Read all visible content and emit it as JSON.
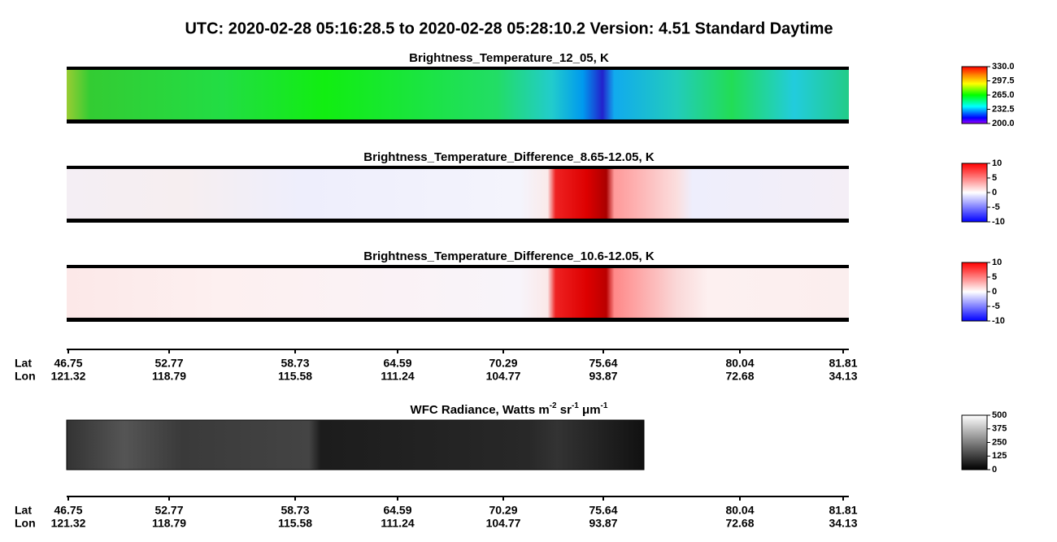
{
  "title": "UTC:  2020-02-28   05:16:28.5  to  2020-02-28   05:28:10.2    Version: 4.51  Standard Daytime",
  "panels": [
    {
      "title": "Brightness_Temperature_12_05, K",
      "colorbar": {
        "ylim": [
          200,
          330
        ],
        "yticks": [
          {
            "value": 200,
            "label": "200.0"
          },
          {
            "value": 232.5,
            "label": "232.5"
          },
          {
            "value": 265,
            "label": "265.0"
          },
          {
            "value": 297.5,
            "label": "297.5"
          },
          {
            "value": 330,
            "label": "330.0"
          }
        ]
      }
    },
    {
      "title": "Brightness_Temperature_Difference_8.65-12.05, K",
      "colorbar": {
        "ylim": [
          -10,
          10
        ],
        "yticks": [
          -10,
          -5,
          0,
          5,
          10
        ]
      }
    },
    {
      "title": "Brightness_Temperature_Difference_10.6-12.05, K",
      "colorbar": {
        "ylim": [
          -10,
          10
        ],
        "yticks": [
          -10,
          -5,
          0,
          5,
          10
        ]
      }
    },
    {
      "title_parts": [
        "WFC Radiance, Watts m",
        "-2",
        " sr",
        "-1",
        " μm",
        "-1"
      ],
      "colorbar": {
        "ylim": [
          0,
          500
        ],
        "yticks": [
          0,
          125,
          250,
          375,
          500
        ]
      }
    }
  ],
  "axis": {
    "lat_label": "Lat",
    "lon_label": "Lon",
    "lat": [
      {
        "value": 46.75,
        "label": "46.75"
      },
      {
        "value": 52.77,
        "label": "52.77"
      },
      {
        "value": 58.73,
        "label": "58.73"
      },
      {
        "value": 64.59,
        "label": "64.59"
      },
      {
        "value": 70.29,
        "label": "70.29"
      },
      {
        "value": 75.64,
        "label": "75.64"
      },
      {
        "value": 80.04,
        "label": "80.04"
      },
      {
        "value": 81.81,
        "label": "81.81"
      }
    ],
    "lon": [
      121.32,
      118.79,
      115.58,
      111.24,
      104.77,
      93.87,
      72.68,
      34.13
    ]
  }
}
